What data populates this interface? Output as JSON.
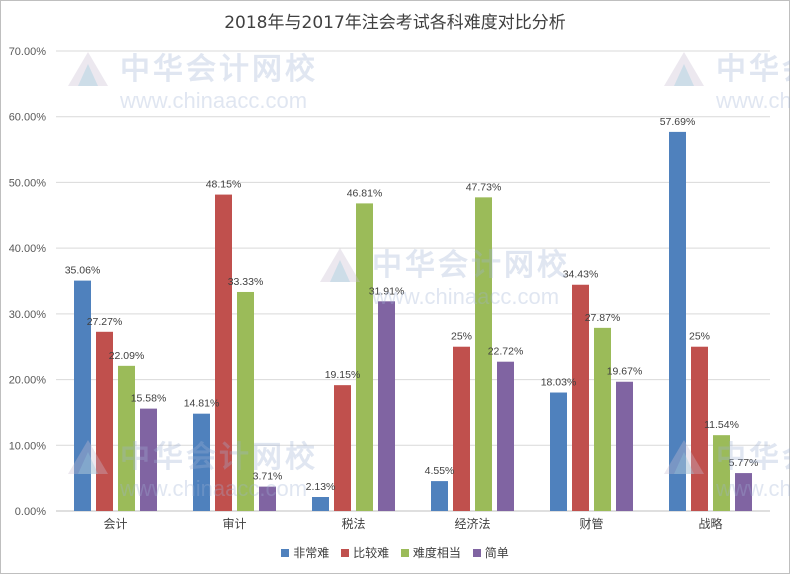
{
  "chart_data": {
    "type": "bar",
    "title": "2018年与2017年注会考试各科难度对比分析",
    "categories": [
      "会计",
      "审计",
      "税法",
      "经济法",
      "财管",
      "战略"
    ],
    "series": [
      {
        "name": "非常难",
        "color": "#4f81bd",
        "values": [
          35.06,
          14.81,
          2.13,
          4.55,
          18.03,
          57.69
        ],
        "labels": [
          "35.06%",
          "14.81%",
          "2.13%",
          "4.55%",
          "18.03%",
          "57.69%"
        ]
      },
      {
        "name": "比较难",
        "color": "#c0504d",
        "values": [
          27.27,
          48.15,
          19.15,
          25,
          34.43,
          25
        ],
        "labels": [
          "27.27%",
          "48.15%",
          "19.15%",
          "25%",
          "34.43%",
          "25%"
        ]
      },
      {
        "name": "难度相当",
        "color": "#9bbb59",
        "values": [
          22.09,
          33.33,
          46.81,
          47.73,
          27.87,
          11.54
        ],
        "labels": [
          "22.09%",
          "33.33%",
          "46.81%",
          "47.73%",
          "27.87%",
          "11.54%"
        ]
      },
      {
        "name": "简单",
        "color": "#8064a2",
        "values": [
          15.58,
          3.71,
          31.91,
          22.72,
          19.67,
          5.77
        ],
        "labels": [
          "15.58%",
          "3.71%",
          "31.91%",
          "22.72%",
          "19.67%",
          "5.77%"
        ]
      }
    ],
    "ylim": [
      0,
      70
    ],
    "yticks": [
      "0.00%",
      "10.00%",
      "20.00%",
      "30.00%",
      "40.00%",
      "50.00%",
      "60.00%",
      "70.00%"
    ],
    "grid": true,
    "legend": "bottom"
  },
  "watermark": {
    "text_cn": "中华会计网校",
    "text_en": "www.chinaacc.com"
  }
}
